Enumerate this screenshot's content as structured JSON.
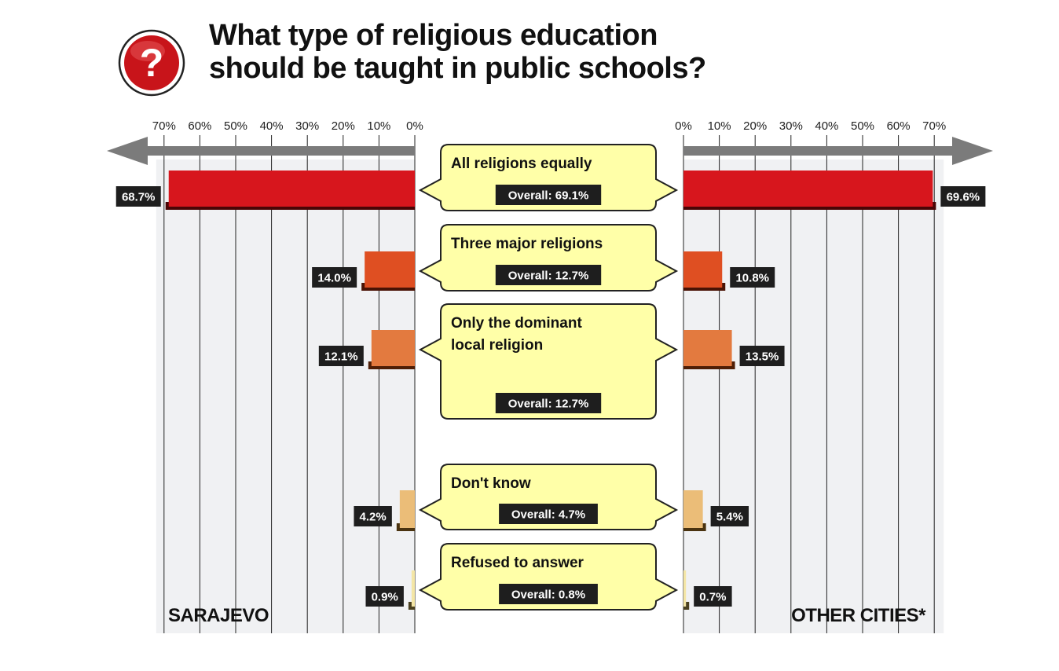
{
  "title_lines": [
    "What type of religious education",
    "should be taught in public schools?"
  ],
  "icon": "question-mark-icon",
  "colors": {
    "panel": "#f0f1f3",
    "gridline": "#222222",
    "arrow": "#7b7b7b",
    "callout_fill": "#ffffa8",
    "callout_stroke": "#222222",
    "badge": "#1e1e1e",
    "icon_red": "#c8141a"
  },
  "chart_data": {
    "type": "bar",
    "title": "What type of religious education should be taught in public schools?",
    "xlim": [
      0,
      70
    ],
    "ticks": [
      0,
      10,
      20,
      30,
      40,
      50,
      60,
      70
    ],
    "tick_labels": [
      "0%",
      "10%",
      "20%",
      "30%",
      "40%",
      "50%",
      "60%",
      "70%"
    ],
    "panels": [
      {
        "name": "SARAJEVO",
        "direction": "left"
      },
      {
        "name": "OTHER CITIES*",
        "direction": "right"
      }
    ],
    "categories": [
      {
        "label_lines": [
          "All religions equally"
        ],
        "overall_label": "Overall: 69.1%",
        "sarajevo": 68.7,
        "sarajevo_label": "68.7%",
        "other": 69.6,
        "other_label": "69.6%",
        "color": "#d7161d",
        "shadow": "#4a0506"
      },
      {
        "label_lines": [
          "Three major religions"
        ],
        "overall_label": "Overall: 12.7%",
        "sarajevo": 14.0,
        "sarajevo_label": "14.0%",
        "other": 10.8,
        "other_label": "10.8%",
        "color": "#df4f22",
        "shadow": "#4a1305"
      },
      {
        "label_lines": [
          "Only the dominant",
          "local religion"
        ],
        "overall_label": "Overall: 12.7%",
        "sarajevo": 12.1,
        "sarajevo_label": "12.1%",
        "other": 13.5,
        "other_label": "13.5%",
        "color": "#e37a3f",
        "shadow": "#4f1e06"
      },
      {
        "label_lines": [
          "Don't know"
        ],
        "overall_label": "Overall: 4.7%",
        "sarajevo": 4.2,
        "sarajevo_label": "4.2%",
        "other": 5.4,
        "other_label": "5.4%",
        "color": "#ebbd78",
        "shadow": "#4a3310"
      },
      {
        "label_lines": [
          "Refused to answer"
        ],
        "overall_label": "Overall: 0.8%",
        "sarajevo": 0.9,
        "sarajevo_label": "0.9%",
        "other": 0.7,
        "other_label": "0.7%",
        "color": "#f4e6a6",
        "shadow": "#4a4020"
      }
    ]
  }
}
